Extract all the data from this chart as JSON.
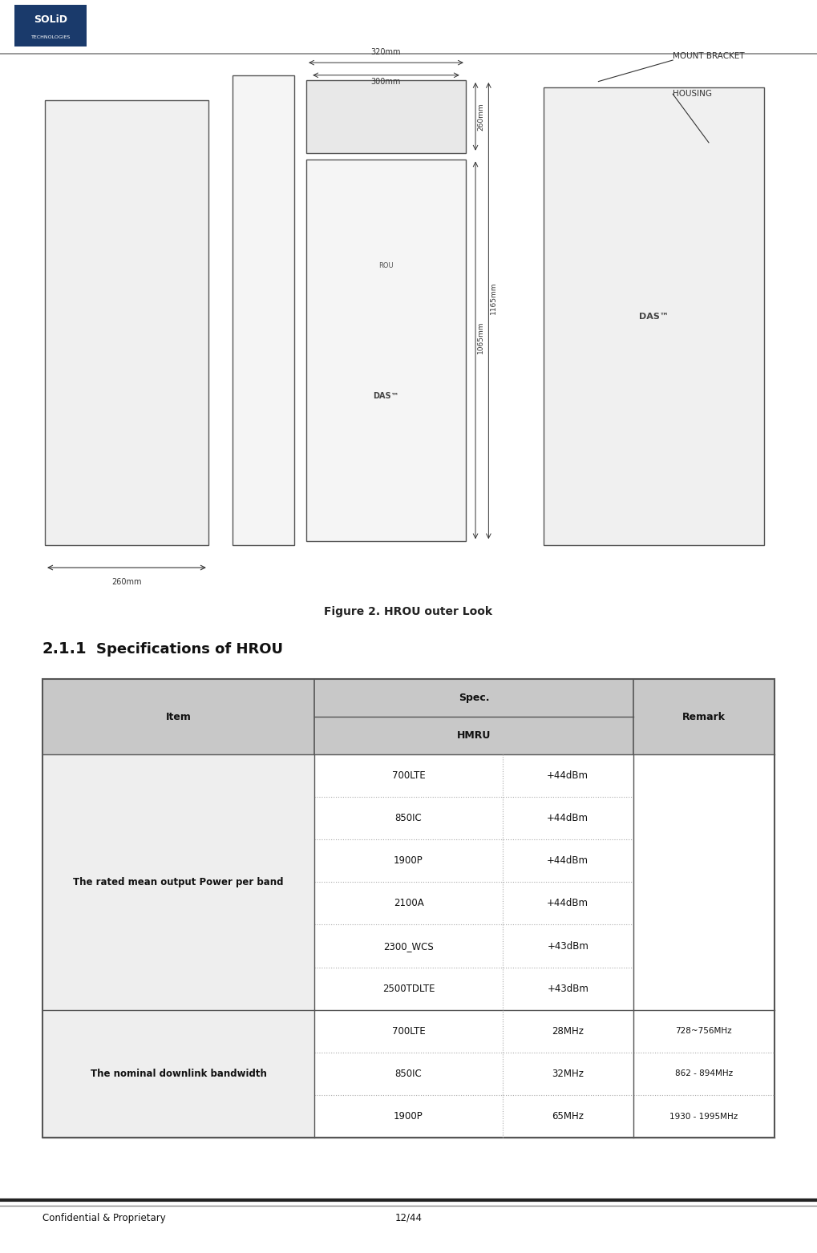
{
  "page_width": 10.19,
  "page_height": 15.63,
  "bg_color": "#ffffff",
  "logo_bg": "#1a3a6b",
  "figure_caption": "Figure 2. HROU outer Look",
  "section_title_num": "2.1.1",
  "section_title_text": "Specifications of HROU",
  "table": {
    "col1_label": "Item",
    "col2_label": "Spec.",
    "col2_sub_label": "HMRU",
    "col3_label": "Remark",
    "header_bg": "#c8c8c8",
    "item_bg": "#eeeeee",
    "rows": [
      {
        "item": "The rated mean output Power per band",
        "sub_rows": [
          {
            "band": "700LTE",
            "value": "+44dBm",
            "remark": ""
          },
          {
            "band": "850IC",
            "value": "+44dBm",
            "remark": ""
          },
          {
            "band": "1900P",
            "value": "+44dBm",
            "remark": ""
          },
          {
            "band": "2100A",
            "value": "+44dBm",
            "remark": ""
          },
          {
            "band": "2300_WCS",
            "value": "+43dBm",
            "remark": ""
          },
          {
            "band": "2500TDLTE",
            "value": "+43dBm",
            "remark": ""
          }
        ]
      },
      {
        "item": "The nominal downlink bandwidth",
        "sub_rows": [
          {
            "band": "700LTE",
            "value": "28MHz",
            "remark": "728~756MHz"
          },
          {
            "band": "850IC",
            "value": "32MHz",
            "remark": "862 - 894MHz"
          },
          {
            "band": "1900P",
            "value": "65MHz",
            "remark": "1930 - 1995MHz"
          }
        ]
      }
    ]
  },
  "footer": {
    "left": "Confidential & Proprietary",
    "right": "12/44"
  }
}
